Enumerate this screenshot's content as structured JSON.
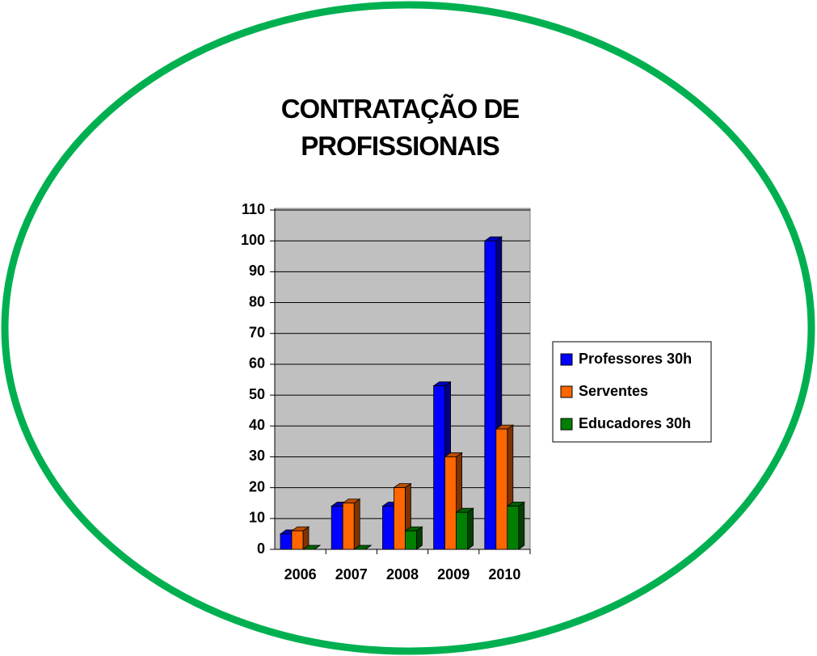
{
  "chart_data": {
    "type": "bar3d",
    "title": "CONTRATAÇÃO DE PROFISSIONAIS",
    "categories": [
      "2006",
      "2007",
      "2008",
      "2009",
      "2010"
    ],
    "series": [
      {
        "name": "Professores 30h",
        "color": "#0000ff",
        "values": [
          5,
          14,
          14,
          53,
          100
        ]
      },
      {
        "name": "Serventes",
        "color": "#ff6600",
        "values": [
          6,
          15,
          20,
          30,
          39
        ]
      },
      {
        "name": "Educadores 30h",
        "color": "#008000",
        "values": [
          0,
          0,
          6,
          12,
          14
        ]
      }
    ],
    "ylim": [
      0,
      110
    ],
    "yticks": [
      0,
      10,
      20,
      30,
      40,
      50,
      60,
      70,
      80,
      90,
      100,
      110
    ],
    "grid": true,
    "legend": "right"
  }
}
